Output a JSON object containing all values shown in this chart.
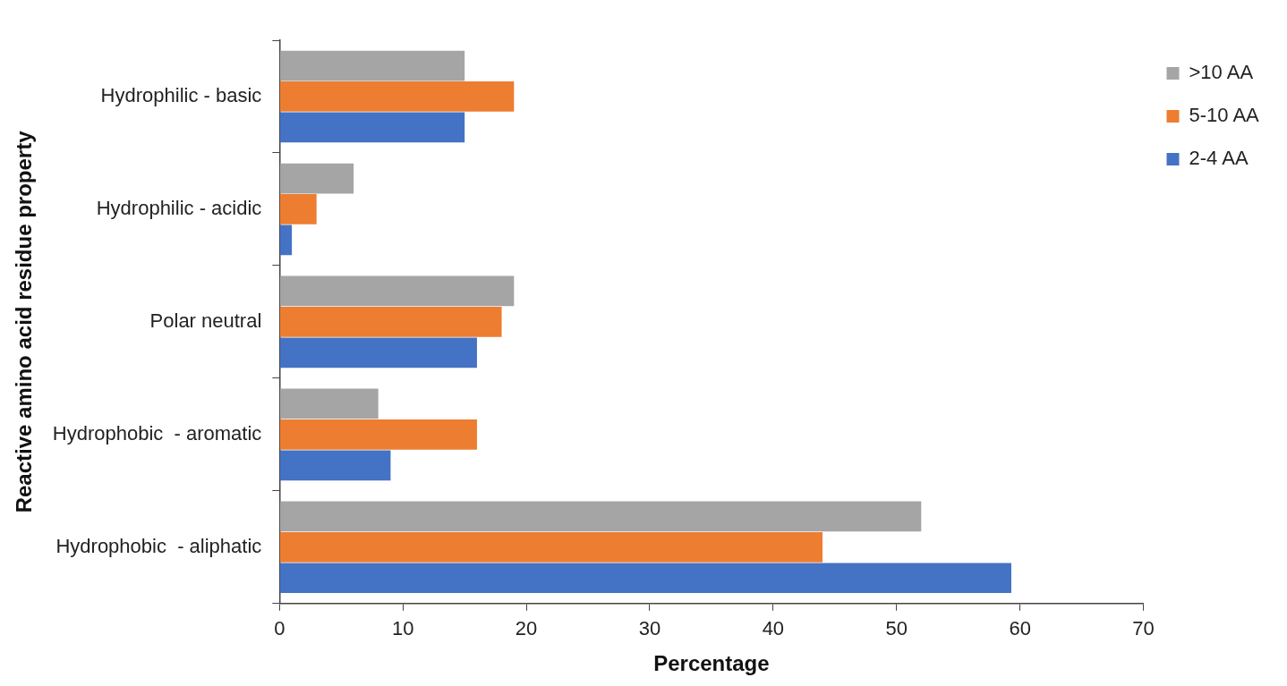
{
  "chart_data": {
    "type": "bar",
    "orientation": "horizontal",
    "categories": [
      "Hydrophilic - basic",
      "Hydrophilic - acidic",
      "Polar neutral",
      "Hydrophobic  - aromatic",
      "Hydrophobic  - aliphatic"
    ],
    "series": [
      {
        "name": ">10 AA",
        "color": "#a5a5a5",
        "values": [
          15,
          6,
          19,
          8,
          52
        ]
      },
      {
        "name": "5-10 AA",
        "color": "#ed7d31",
        "values": [
          19,
          3,
          18,
          16,
          44
        ]
      },
      {
        "name": "2-4 AA",
        "color": "#4472c4",
        "values": [
          15,
          1,
          16,
          9,
          59.3
        ]
      }
    ],
    "xlabel": "Percentage",
    "ylabel": "Reactive amino acid residue property",
    "xlim": [
      0,
      70
    ],
    "xticks": [
      0,
      10,
      20,
      30,
      40,
      50,
      60,
      70
    ],
    "grid": false,
    "legend": "right"
  }
}
